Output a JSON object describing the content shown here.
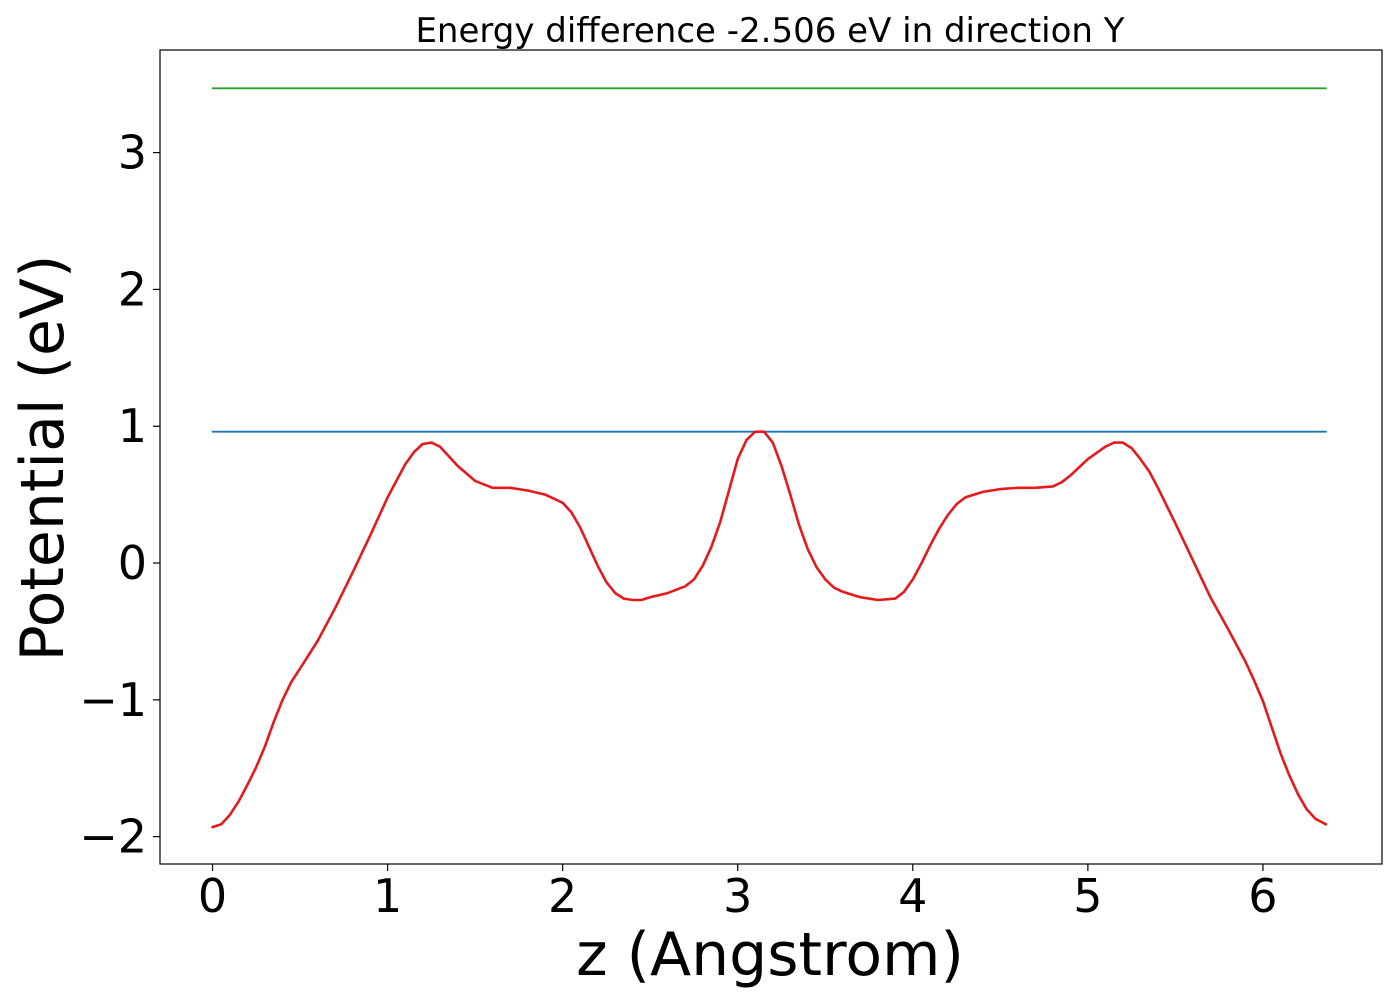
{
  "chart_data": {
    "type": "line",
    "title": "Energy difference -2.506 eV in direction Y",
    "xlabel": "z (Angstrom)",
    "ylabel": "Potential (eV)",
    "xlim": [
      -0.3,
      6.68
    ],
    "ylim": [
      -2.2,
      3.75
    ],
    "xticks": [
      {
        "value": 0,
        "label": "0"
      },
      {
        "value": 1,
        "label": "1"
      },
      {
        "value": 2,
        "label": "2"
      },
      {
        "value": 3,
        "label": "3"
      },
      {
        "value": 4,
        "label": "4"
      },
      {
        "value": 5,
        "label": "5"
      },
      {
        "value": 6,
        "label": "6"
      }
    ],
    "yticks": [
      {
        "value": -2,
        "label": "−2"
      },
      {
        "value": -1,
        "label": "−1"
      },
      {
        "value": 0,
        "label": "0"
      },
      {
        "value": 1,
        "label": "1"
      },
      {
        "value": 2,
        "label": "2"
      },
      {
        "value": 3,
        "label": "3"
      }
    ],
    "grid": false,
    "series": [
      {
        "color": "#2ca02c",
        "x": [
          0,
          6.36
        ],
        "y": [
          3.47,
          3.47
        ]
      },
      {
        "color": "#1f77b4",
        "x": [
          0,
          6.36
        ],
        "y": [
          0.96,
          0.96
        ]
      },
      {
        "color": "#e41a1c",
        "x": [
          0.0,
          0.05,
          0.1,
          0.15,
          0.2,
          0.25,
          0.3,
          0.35,
          0.4,
          0.45,
          0.5,
          0.6,
          0.7,
          0.8,
          0.9,
          1.0,
          1.1,
          1.15,
          1.2,
          1.25,
          1.3,
          1.4,
          1.5,
          1.6,
          1.7,
          1.8,
          1.9,
          2.0,
          2.05,
          2.1,
          2.15,
          2.2,
          2.25,
          2.3,
          2.35,
          2.4,
          2.45,
          2.5,
          2.6,
          2.7,
          2.75,
          2.8,
          2.85,
          2.9,
          2.95,
          3.0,
          3.05,
          3.1,
          3.15,
          3.2,
          3.25,
          3.3,
          3.35,
          3.4,
          3.45,
          3.5,
          3.55,
          3.6,
          3.65,
          3.7,
          3.8,
          3.9,
          3.95,
          4.0,
          4.05,
          4.1,
          4.15,
          4.2,
          4.25,
          4.3,
          4.35,
          4.4,
          4.5,
          4.6,
          4.7,
          4.8,
          4.85,
          4.9,
          5.0,
          5.1,
          5.15,
          5.2,
          5.25,
          5.3,
          5.35,
          5.4,
          5.5,
          5.6,
          5.7,
          5.8,
          5.9,
          5.95,
          6.0,
          6.05,
          6.1,
          6.15,
          6.2,
          6.25,
          6.3,
          6.36
        ],
        "y": [
          -1.93,
          -1.91,
          -1.84,
          -1.74,
          -1.62,
          -1.49,
          -1.34,
          -1.16,
          -1.0,
          -0.87,
          -0.77,
          -0.57,
          -0.33,
          -0.07,
          0.2,
          0.48,
          0.72,
          0.81,
          0.87,
          0.88,
          0.85,
          0.71,
          0.6,
          0.55,
          0.55,
          0.53,
          0.5,
          0.44,
          0.37,
          0.26,
          0.12,
          -0.02,
          -0.14,
          -0.22,
          -0.26,
          -0.27,
          -0.27,
          -0.25,
          -0.22,
          -0.17,
          -0.12,
          -0.02,
          0.12,
          0.3,
          0.53,
          0.76,
          0.9,
          0.96,
          0.96,
          0.88,
          0.71,
          0.5,
          0.28,
          0.1,
          -0.03,
          -0.12,
          -0.18,
          -0.21,
          -0.23,
          -0.25,
          -0.27,
          -0.26,
          -0.21,
          -0.12,
          0.0,
          0.13,
          0.25,
          0.35,
          0.43,
          0.48,
          0.5,
          0.52,
          0.54,
          0.55,
          0.55,
          0.56,
          0.59,
          0.64,
          0.76,
          0.85,
          0.88,
          0.88,
          0.84,
          0.76,
          0.67,
          0.55,
          0.29,
          0.02,
          -0.25,
          -0.48,
          -0.72,
          -0.86,
          -1.01,
          -1.2,
          -1.39,
          -1.55,
          -1.69,
          -1.8,
          -1.87,
          -1.91
        ]
      }
    ]
  }
}
